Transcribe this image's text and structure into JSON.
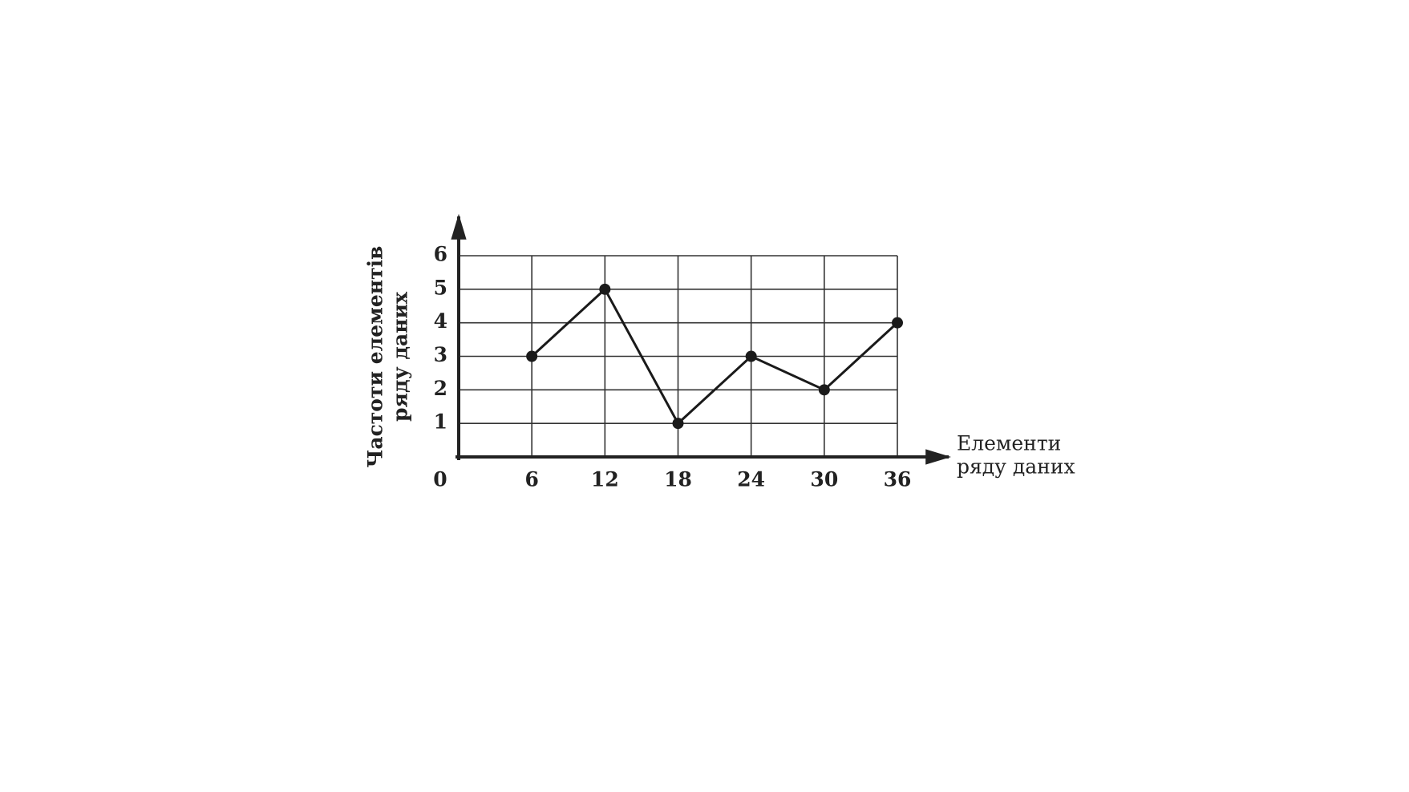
{
  "chart_data": {
    "type": "line",
    "xlabel": [
      "Елементи",
      "ряду даних"
    ],
    "ylabel": [
      "Частоти елементів",
      "ряду даних"
    ],
    "x": [
      6,
      12,
      18,
      24,
      30,
      36
    ],
    "values": [
      3,
      5,
      1,
      3,
      2,
      4
    ],
    "color": "#1a1a1a",
    "xlim": [
      0,
      36
    ],
    "ylim": [
      0,
      6
    ],
    "xticks": [
      0,
      6,
      12,
      18,
      24,
      30,
      36
    ],
    "yticks": [
      1,
      2,
      3,
      4,
      5,
      6
    ],
    "grid": true
  }
}
